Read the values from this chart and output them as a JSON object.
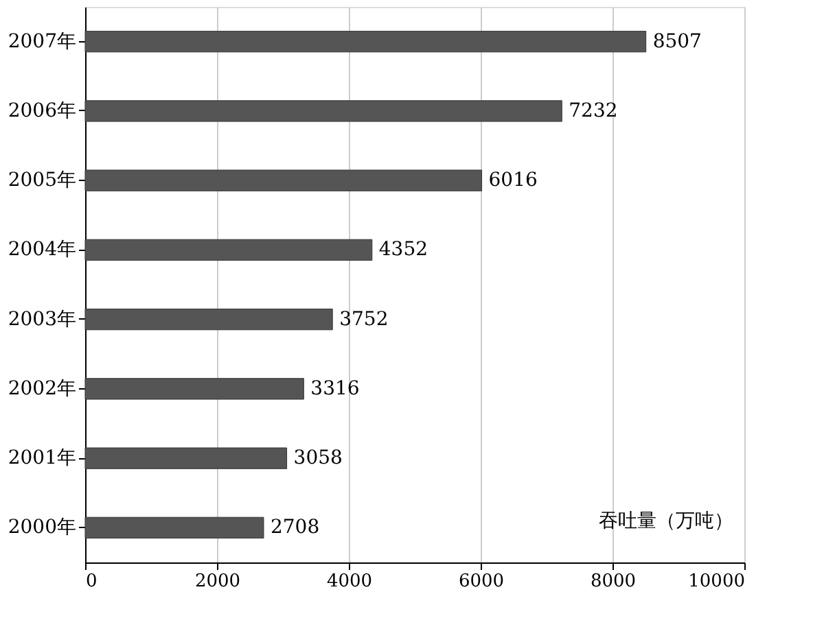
{
  "chart_data": {
    "type": "bar",
    "orientation": "horizontal",
    "categories": [
      "2007年",
      "2006年",
      "2005年",
      "2004年",
      "2003年",
      "2002年",
      "2001年",
      "2000年"
    ],
    "values": [
      8507,
      7232,
      6016,
      4352,
      3752,
      3316,
      3058,
      2708
    ],
    "color": "#555555",
    "xlim": [
      0,
      10000
    ],
    "xticks": [
      0,
      2000,
      4000,
      6000,
      8000,
      10000
    ],
    "grid": "x",
    "data_labels": true,
    "annotations": [
      "吞吐量（万吨）"
    ]
  }
}
